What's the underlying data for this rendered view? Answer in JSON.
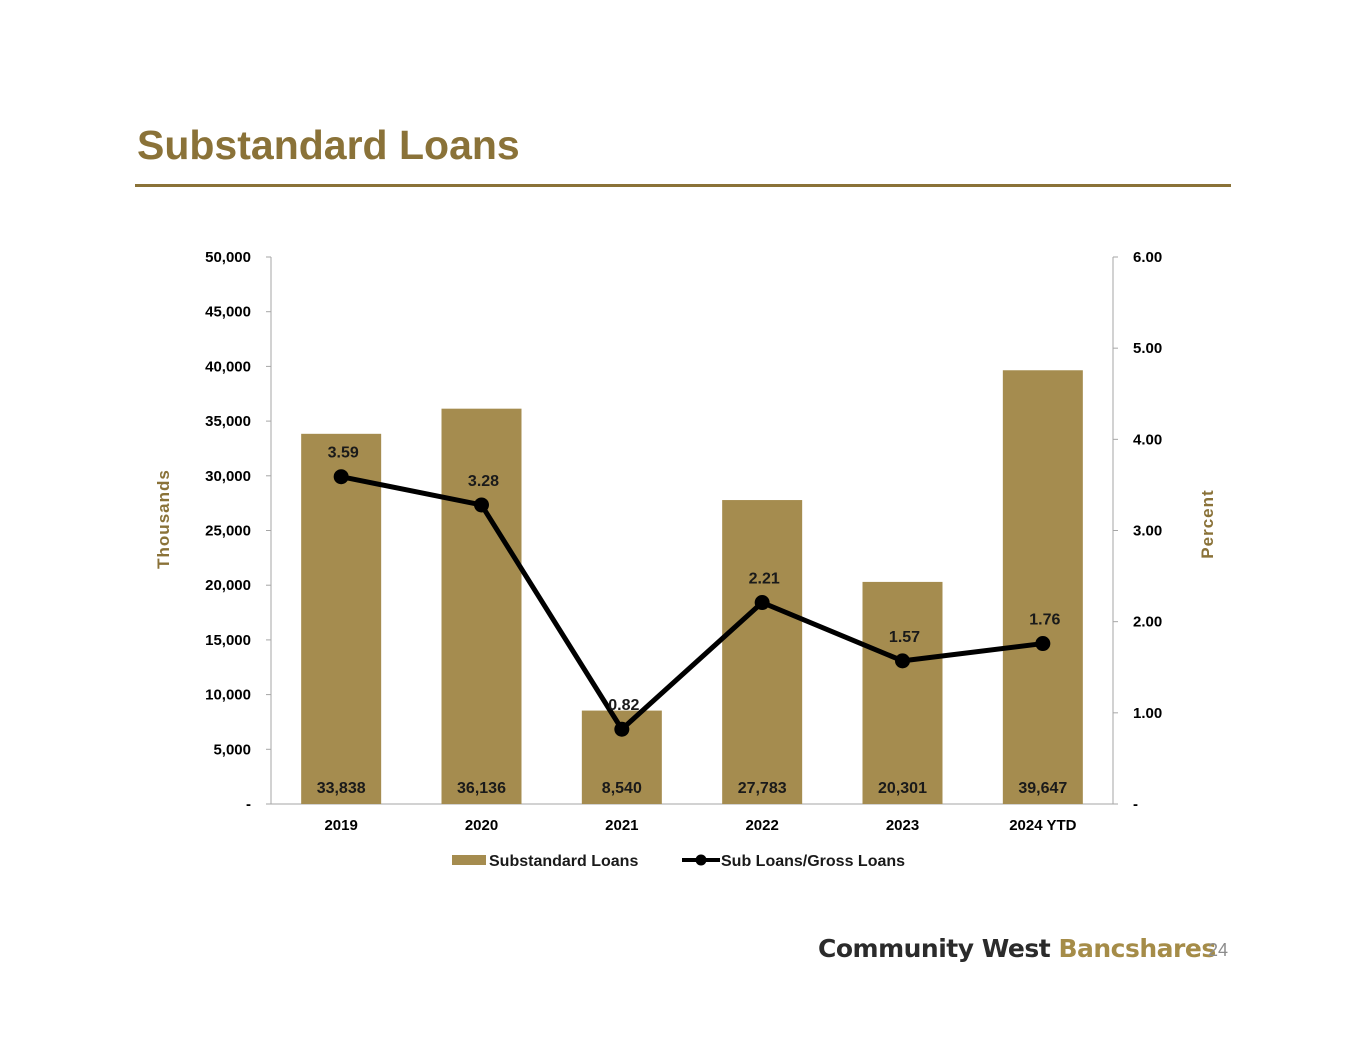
{
  "slide": {
    "title": "Substandard Loans",
    "page_number": "24",
    "logo_part1": "Community West",
    "logo_part2": "Bancshares"
  },
  "colors": {
    "accent": "#8a7238",
    "bar": "#a58c4f",
    "line": "#000000",
    "axis": "#a6a6a6"
  },
  "chart_data": {
    "type": "bar",
    "categories": [
      "2019",
      "2020",
      "2021",
      "2022",
      "2023",
      "2024 YTD"
    ],
    "series": [
      {
        "name": "Substandard Loans",
        "type": "bar",
        "axis": "left",
        "values": [
          33838,
          36136,
          8540,
          27783,
          20301,
          39647
        ],
        "labels": [
          "33,838",
          "36,136",
          "8,540",
          "27,783",
          "20,301",
          "39,647"
        ]
      },
      {
        "name": "Sub Loans/Gross Loans",
        "type": "line",
        "axis": "right",
        "values": [
          3.59,
          3.28,
          0.82,
          2.21,
          1.57,
          1.76
        ],
        "labels": [
          "3.59",
          "3.28",
          "0.82",
          "2.21",
          "1.57",
          "1.76"
        ]
      }
    ],
    "ylabel_left": "Thousands",
    "ylabel_right": "Percent",
    "ylim_left": [
      0,
      50000
    ],
    "ylim_right": [
      0,
      6
    ],
    "yticks_left": [
      "-",
      "5,000",
      "10,000",
      "15,000",
      "20,000",
      "25,000",
      "30,000",
      "35,000",
      "40,000",
      "45,000",
      "50,000"
    ],
    "yticks_right": [
      "-",
      "1.00",
      "2.00",
      "3.00",
      "4.00",
      "5.00",
      "6.00"
    ],
    "grid": false,
    "legend": "bottom"
  }
}
